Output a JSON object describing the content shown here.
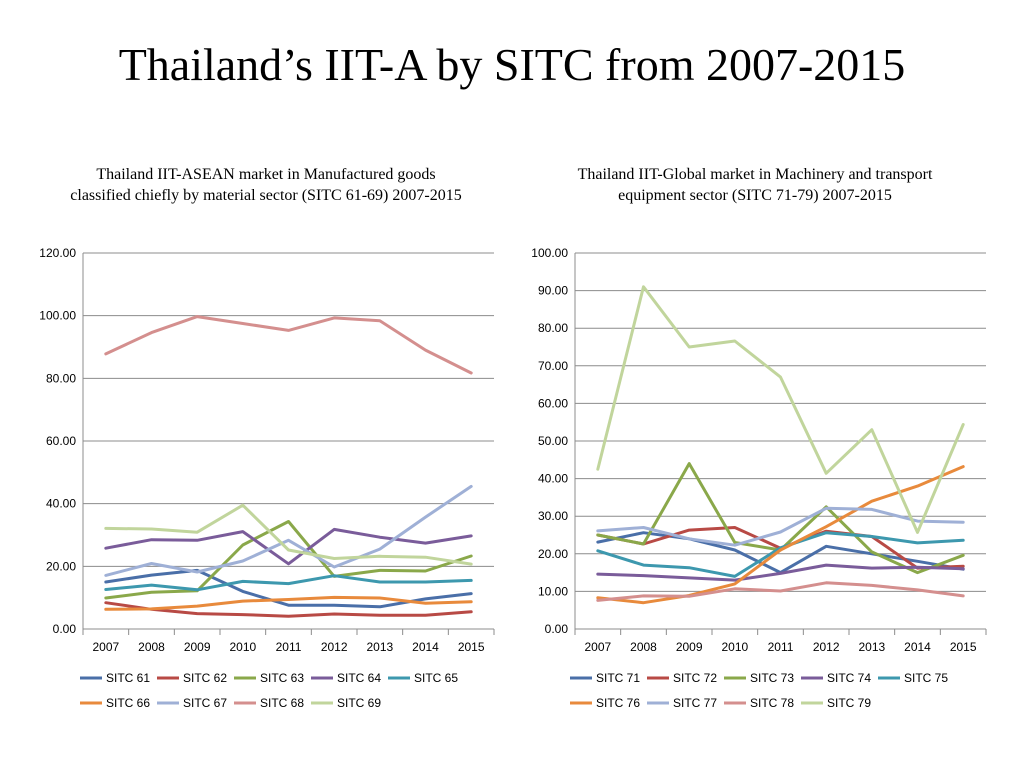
{
  "slide_title": "Thailand’s IIT-A by SITC from 2007-2015",
  "chart_data": [
    {
      "type": "line",
      "title": "Thailand IIT-ASEAN market in Manufactured goods classified chiefly by material sector (SITC 61-69) 2007-2015",
      "xlabel": "",
      "ylabel": "",
      "x": [
        "2007",
        "2008",
        "2009",
        "2010",
        "2011",
        "2012",
        "2013",
        "2014",
        "2015"
      ],
      "ylim": [
        0,
        120
      ],
      "yticks": [
        "0.00",
        "20.00",
        "40.00",
        "60.00",
        "80.00",
        "100.00",
        "120.00"
      ],
      "grid": true,
      "legend_position": "bottom",
      "series": [
        {
          "name": "SITC 61",
          "color": "#4a6fa8",
          "values": [
            15.0,
            17.2,
            18.7,
            12.0,
            7.6,
            7.6,
            7.1,
            9.6,
            11.3
          ]
        },
        {
          "name": "SITC 62",
          "color": "#b84a45",
          "values": [
            8.4,
            6.3,
            4.9,
            4.6,
            4.1,
            4.8,
            4.4,
            4.4,
            5.5
          ]
        },
        {
          "name": "SITC 63",
          "color": "#8aa84a",
          "values": [
            9.9,
            11.7,
            12.2,
            26.8,
            34.3,
            16.8,
            18.7,
            18.5,
            23.3
          ]
        },
        {
          "name": "SITC 64",
          "color": "#7a5c9a",
          "values": [
            25.8,
            28.5,
            28.3,
            31.1,
            20.8,
            31.8,
            29.3,
            27.4,
            29.7
          ]
        },
        {
          "name": "SITC 65",
          "color": "#3d98ae",
          "values": [
            12.6,
            14.0,
            12.5,
            15.2,
            14.5,
            17.0,
            15.0,
            15.0,
            15.5
          ]
        },
        {
          "name": "SITC 66",
          "color": "#e88a3c",
          "values": [
            6.3,
            6.4,
            7.3,
            8.9,
            9.4,
            10.1,
            9.9,
            8.2,
            8.7
          ]
        },
        {
          "name": "SITC 67",
          "color": "#9fb0d6",
          "values": [
            17.1,
            20.9,
            18.2,
            21.7,
            28.3,
            19.8,
            25.5,
            35.7,
            45.5
          ]
        },
        {
          "name": "SITC 68",
          "color": "#d48f8e",
          "values": [
            87.8,
            94.6,
            99.7,
            97.5,
            95.3,
            99.3,
            98.4,
            89.0,
            81.7
          ]
        },
        {
          "name": "SITC 69",
          "color": "#c1d59c",
          "values": [
            32.1,
            31.9,
            30.9,
            39.5,
            25.2,
            22.5,
            23.2,
            22.9,
            20.7
          ]
        }
      ]
    },
    {
      "type": "line",
      "title": "Thailand IIT-Global market in Machinery and transport equipment sector (SITC 71-79) 2007-2015",
      "xlabel": "",
      "ylabel": "",
      "x": [
        "2007",
        "2008",
        "2009",
        "2010",
        "2011",
        "2012",
        "2013",
        "2014",
        "2015"
      ],
      "ylim": [
        0,
        100
      ],
      "yticks": [
        "0.00",
        "10.00",
        "20.00",
        "30.00",
        "40.00",
        "50.00",
        "60.00",
        "70.00",
        "80.00",
        "90.00",
        "100.00"
      ],
      "grid": true,
      "legend_position": "bottom",
      "series": [
        {
          "name": "SITC 71",
          "color": "#4a6fa8",
          "values": [
            23.1,
            25.6,
            24.0,
            21.0,
            15.0,
            22.0,
            20.0,
            18.0,
            15.9
          ]
        },
        {
          "name": "SITC 72",
          "color": "#b84a45",
          "values": [
            25.0,
            22.6,
            26.3,
            27.0,
            21.5,
            26.0,
            24.6,
            16.2,
            16.7
          ]
        },
        {
          "name": "SITC 73",
          "color": "#8aa84a",
          "values": [
            25.0,
            22.6,
            44.0,
            23.0,
            21.0,
            32.5,
            20.5,
            15.0,
            19.6
          ]
        },
        {
          "name": "SITC 74",
          "color": "#7a5c9a",
          "values": [
            14.6,
            14.2,
            13.6,
            13.0,
            14.8,
            17.0,
            16.2,
            16.4,
            16.0
          ]
        },
        {
          "name": "SITC 75",
          "color": "#3d98ae",
          "values": [
            20.8,
            17.0,
            16.3,
            14.0,
            21.6,
            25.6,
            24.6,
            22.9,
            23.6
          ]
        },
        {
          "name": "SITC 76",
          "color": "#e88a3c",
          "values": [
            8.3,
            7.0,
            8.9,
            12.0,
            21.0,
            27.2,
            34.0,
            38.0,
            43.2
          ]
        },
        {
          "name": "SITC 77",
          "color": "#9fb0d6",
          "values": [
            26.1,
            27.0,
            24.0,
            22.3,
            25.8,
            32.1,
            31.8,
            28.7,
            28.4
          ]
        },
        {
          "name": "SITC 78",
          "color": "#d48f8e",
          "values": [
            7.6,
            8.8,
            8.7,
            10.7,
            10.1,
            12.3,
            11.6,
            10.4,
            8.8
          ]
        },
        {
          "name": "SITC 79",
          "color": "#c1d59c",
          "values": [
            42.5,
            91.0,
            75.0,
            76.6,
            67.0,
            41.4,
            53.0,
            25.7,
            54.4
          ]
        }
      ]
    }
  ]
}
